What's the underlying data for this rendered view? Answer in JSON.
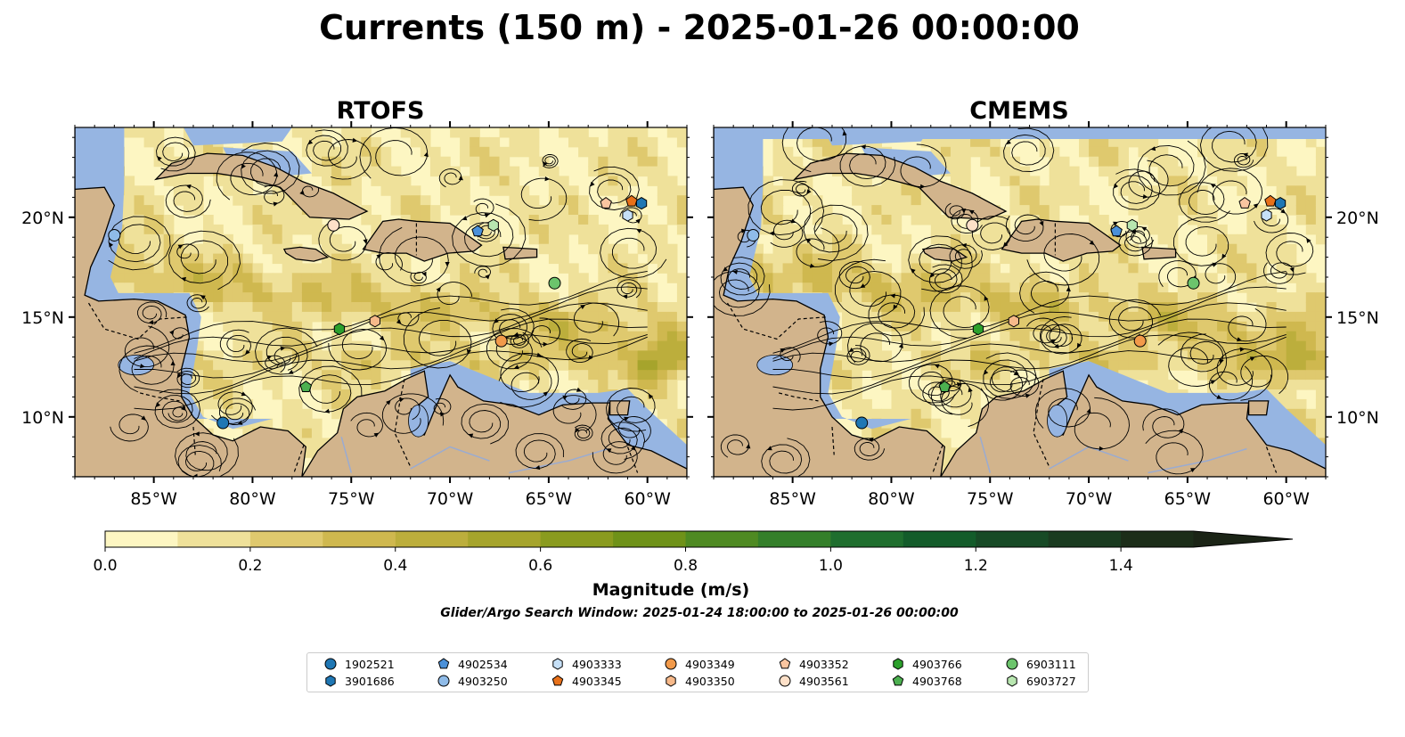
{
  "title": "Currents (150 m) - 2025-01-26 00:00:00",
  "panels": [
    {
      "title": "RTOFS"
    },
    {
      "title": "CMEMS"
    }
  ],
  "map": {
    "lon_range": [
      -89,
      -58
    ],
    "lat_range": [
      7,
      24.5
    ],
    "x_ticks": [
      "85°W",
      "80°W",
      "75°W",
      "70°W",
      "65°W",
      "60°W"
    ],
    "y_ticks": [
      "10°N",
      "15°N",
      "20°N"
    ],
    "colors": {
      "land": "#d2b48c",
      "shallow_water": "#96b5e2",
      "river": "#9aabd1"
    }
  },
  "colorbar": {
    "label": "Magnitude (m/s)",
    "ticks": [
      "0.0",
      "0.2",
      "0.4",
      "0.6",
      "0.8",
      "1.0",
      "1.2",
      "1.4"
    ],
    "range": [
      0.0,
      1.6
    ],
    "extend": "max",
    "colors": [
      "#fdf6c2",
      "#efe19a",
      "#dfc96e",
      "#cfb84f",
      "#bcae3c",
      "#a6a42c",
      "#8a9b1f",
      "#6f9219",
      "#4f8a22",
      "#347f2a",
      "#1f6e2e",
      "#135c2a",
      "#174a26",
      "#1a3b20",
      "#1c2d19",
      "#1b2416"
    ]
  },
  "search_window": "Glider/Argo Search Window: 2025-01-24 18:00:00 to 2025-01-26 00:00:00",
  "chart_data": {
    "type": "scatter",
    "title": "Currents (150 m) - 2025-01-26 00:00:00",
    "xlabel": "",
    "ylabel": "",
    "xlim": [
      -89,
      -58
    ],
    "ylim": [
      7,
      24.5
    ],
    "series": [
      {
        "name": "1902521",
        "marker": "circle",
        "color": "#1f77b4",
        "lon": -81.5,
        "lat": 9.7
      },
      {
        "name": "3901686",
        "marker": "hexagon",
        "color": "#1f77b4",
        "lon": -60.3,
        "lat": 20.7
      },
      {
        "name": "4902534",
        "marker": "pentagon",
        "color": "#4a90d9",
        "lon": -68.6,
        "lat": 19.3
      },
      {
        "name": "4903250",
        "marker": "circle",
        "color": "#8fbbe8",
        "lon": -87.0,
        "lat": 19.1
      },
      {
        "name": "4903333",
        "marker": "hexagon",
        "color": "#c6e0f7",
        "lon": -61.0,
        "lat": 20.1
      },
      {
        "name": "4903345",
        "marker": "pentagon",
        "color": "#e8711a",
        "lon": -60.8,
        "lat": 20.8
      },
      {
        "name": "4903349",
        "marker": "circle",
        "color": "#f29a4a",
        "lon": -67.4,
        "lat": 13.8
      },
      {
        "name": "4903350",
        "marker": "hexagon",
        "color": "#f7b98a",
        "lon": -73.8,
        "lat": 14.8
      },
      {
        "name": "4903352",
        "marker": "pentagon",
        "color": "#f9c5a0",
        "lon": -62.1,
        "lat": 20.7
      },
      {
        "name": "4903561",
        "marker": "circle",
        "color": "#fde0c8",
        "lon": -75.9,
        "lat": 19.6
      },
      {
        "name": "4903766",
        "marker": "hexagon",
        "color": "#2ca02c",
        "lon": -75.6,
        "lat": 14.4
      },
      {
        "name": "4903768",
        "marker": "pentagon",
        "color": "#4cb050",
        "lon": -77.3,
        "lat": 11.5
      },
      {
        "name": "6903111",
        "marker": "circle",
        "color": "#6cc46c",
        "lon": -64.7,
        "lat": 16.7
      },
      {
        "name": "6903727",
        "marker": "hexagon",
        "color": "#b8e6b0",
        "lon": -67.8,
        "lat": 19.6
      }
    ]
  }
}
